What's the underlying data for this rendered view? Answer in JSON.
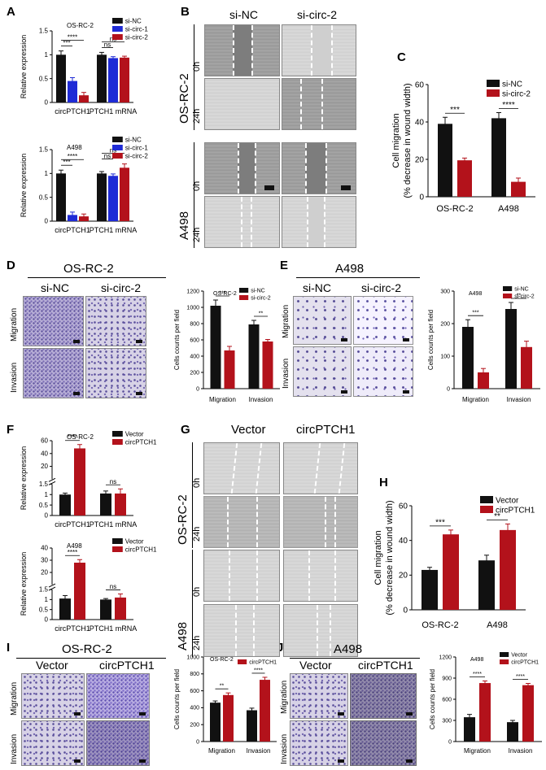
{
  "panels": {
    "A": "A",
    "B": "B",
    "C": "C",
    "D": "D",
    "E": "E",
    "F": "F",
    "G": "G",
    "H": "H",
    "I": "I",
    "J": "J"
  },
  "labels": {
    "si_nc": "si-NC",
    "si_circ2": "si-circ-2",
    "si_circ1": "si-circ-1",
    "vector": "Vector",
    "circptch1": "circPTCH1",
    "osrc2": "OS-RC-2",
    "a498": "A498",
    "h0": "0h",
    "h24": "24h",
    "migration": "Migration",
    "invasion": "Invasion",
    "rel_expr": "Relative expression",
    "cells_per_field": "Cells counts per field",
    "cell_migration": "Cell migration",
    "wound_width": "(% decrease in wound width)",
    "cat_circ": "circPTCH1",
    "cat_mrna": "PTCH1 mRNA"
  },
  "colors": {
    "black": "#111111",
    "blue": "#1f2bd6",
    "red": "#b3121b"
  },
  "chart_data": [
    {
      "id": "A1",
      "type": "bar",
      "title": "OS-RC-2",
      "categories": [
        "circPTCH1",
        "PTCH1 mRNA"
      ],
      "ylabel": "Relative expression",
      "ylim": [
        0,
        1.5
      ],
      "yticks": [
        0,
        0.5,
        1,
        1.5
      ],
      "series": [
        {
          "name": "si-NC",
          "values": [
            1.0,
            1.0
          ],
          "errors": [
            0.08,
            0.05
          ]
        },
        {
          "name": "si-circ-1",
          "values": [
            0.45,
            0.93
          ],
          "errors": [
            0.07,
            0.03
          ]
        },
        {
          "name": "si-circ-2",
          "values": [
            0.15,
            0.94
          ],
          "errors": [
            0.06,
            0.03
          ]
        }
      ],
      "sig": [
        {
          "text": "***"
        },
        {
          "text": "****"
        },
        {
          "text": "ns"
        },
        {
          "text": "ns"
        }
      ]
    },
    {
      "id": "A2",
      "type": "bar",
      "title": "A498",
      "categories": [
        "circPTCH1",
        "PTCH1 mRNA"
      ],
      "ylabel": "Relative expression",
      "ylim": [
        0,
        1.5
      ],
      "yticks": [
        0,
        0.5,
        1,
        1.5
      ],
      "series": [
        {
          "name": "si-NC",
          "values": [
            1.0,
            1.0
          ],
          "errors": [
            0.07,
            0.04
          ]
        },
        {
          "name": "si-circ-1",
          "values": [
            0.13,
            0.95
          ],
          "errors": [
            0.06,
            0.04
          ]
        },
        {
          "name": "si-circ-2",
          "values": [
            0.1,
            1.12
          ],
          "errors": [
            0.05,
            0.08
          ]
        }
      ],
      "sig": [
        {
          "text": "***"
        },
        {
          "text": "****"
        },
        {
          "text": "ns"
        },
        {
          "text": "ns"
        }
      ]
    },
    {
      "id": "C",
      "type": "bar",
      "categories": [
        "OS-RC-2",
        "A498"
      ],
      "ylabel": "Cell migration",
      "ylabel2": "(% decrease in wound width)",
      "ylim": [
        0,
        60
      ],
      "yticks": [
        0,
        20,
        40,
        60
      ],
      "series": [
        {
          "name": "si-NC",
          "values": [
            39,
            42
          ],
          "errors": [
            3.5,
            3
          ]
        },
        {
          "name": "si-circ-2",
          "values": [
            19.5,
            8
          ],
          "errors": [
            1.2,
            2
          ]
        }
      ],
      "sig": [
        {
          "text": "***"
        },
        {
          "text": "****"
        }
      ]
    },
    {
      "id": "D",
      "type": "bar",
      "title": "OS-RC-2",
      "categories": [
        "Migration",
        "Invasion"
      ],
      "ylabel": "Cells counts per field",
      "ylim": [
        0,
        1200
      ],
      "yticks": [
        0,
        200,
        400,
        600,
        800,
        1000,
        1200
      ],
      "series": [
        {
          "name": "si-NC",
          "values": [
            1020,
            790
          ],
          "errors": [
            70,
            50
          ]
        },
        {
          "name": "si-circ-2",
          "values": [
            470,
            580
          ],
          "errors": [
            50,
            25
          ]
        }
      ],
      "sig": [
        {
          "text": "***"
        },
        {
          "text": "**"
        }
      ]
    },
    {
      "id": "E",
      "type": "bar",
      "title": "A498",
      "categories": [
        "Migration",
        "Invasion"
      ],
      "ylabel": "Cells counts per field",
      "ylim": [
        0,
        300
      ],
      "yticks": [
        0,
        100,
        200,
        300
      ],
      "series": [
        {
          "name": "si-NC",
          "values": [
            190,
            245
          ],
          "errors": [
            22,
            20
          ]
        },
        {
          "name": "si-circ-2",
          "values": [
            50,
            128
          ],
          "errors": [
            12,
            18
          ]
        }
      ],
      "sig": [
        {
          "text": "***"
        },
        {
          "text": "**"
        }
      ]
    },
    {
      "id": "F1",
      "type": "bar",
      "title": "OS-RC-2",
      "categories": [
        "circPTCH1",
        "PTCH1 mRNA"
      ],
      "ylabel": "Relative expression",
      "ylim": [
        0,
        60
      ],
      "yticks": [
        0,
        0.5,
        1.0,
        1.5,
        20,
        40,
        60
      ],
      "broken": true,
      "series": [
        {
          "name": "Vector",
          "values": [
            1.0,
            1.05
          ],
          "errors": [
            0.07,
            0.12
          ]
        },
        {
          "name": "circPTCH1",
          "values": [
            48,
            1.05
          ],
          "errors": [
            6,
            0.22
          ]
        }
      ],
      "sig": [
        {
          "text": "****"
        },
        {
          "text": "ns"
        }
      ]
    },
    {
      "id": "F2",
      "type": "bar",
      "title": "A498",
      "categories": [
        "circPTCH1",
        "PTCH1 mRNA"
      ],
      "ylabel": "Relative expression",
      "ylim": [
        0,
        40
      ],
      "yticks": [
        0,
        0.5,
        1.0,
        1.5,
        20,
        30,
        40
      ],
      "broken": true,
      "series": [
        {
          "name": "Vector",
          "values": [
            1.05,
            1.0
          ],
          "errors": [
            0.15,
            0.05
          ]
        },
        {
          "name": "circPTCH1",
          "values": [
            28,
            1.1
          ],
          "errors": [
            2.5,
            0.18
          ]
        }
      ],
      "sig": [
        {
          "text": "****"
        },
        {
          "text": "ns"
        }
      ]
    },
    {
      "id": "H",
      "type": "bar",
      "categories": [
        "OS-RC-2",
        "A498"
      ],
      "ylabel": "Cell migration",
      "ylabel2": "(% decrease in wound width)",
      "ylim": [
        0,
        60
      ],
      "yticks": [
        0,
        20,
        40,
        60
      ],
      "series": [
        {
          "name": "Vector",
          "values": [
            23,
            28.5
          ],
          "errors": [
            1.5,
            3
          ]
        },
        {
          "name": "circPTCH1",
          "values": [
            43.5,
            46
          ],
          "errors": [
            2.5,
            3.5
          ]
        }
      ],
      "sig": [
        {
          "text": "***"
        },
        {
          "text": "**"
        }
      ]
    },
    {
      "id": "I",
      "type": "bar",
      "title": "OS-RC-2",
      "categories": [
        "Migration",
        "Invasion"
      ],
      "ylabel": "Cells counts per field",
      "ylim": [
        0,
        1000
      ],
      "yticks": [
        0,
        200,
        400,
        600,
        800,
        1000
      ],
      "series": [
        {
          "name": "Vector",
          "values": [
            460,
            370
          ],
          "errors": [
            20,
            25
          ]
        },
        {
          "name": "circPTCH1",
          "values": [
            550,
            730
          ],
          "errors": [
            25,
            30
          ]
        }
      ],
      "sig": [
        {
          "text": "**"
        },
        {
          "text": "****"
        }
      ]
    },
    {
      "id": "J",
      "type": "bar",
      "title": "A498",
      "categories": [
        "Migration",
        "Invasion"
      ],
      "ylabel": "Cells counts per field",
      "ylim": [
        0,
        1200
      ],
      "yticks": [
        0,
        300,
        600,
        900,
        1200
      ],
      "series": [
        {
          "name": "Vector",
          "values": [
            345,
            275
          ],
          "errors": [
            40,
            25
          ]
        },
        {
          "name": "circPTCH1",
          "values": [
            830,
            800
          ],
          "errors": [
            30,
            25
          ]
        }
      ],
      "sig": [
        {
          "text": "****"
        },
        {
          "text": "****"
        }
      ]
    }
  ]
}
